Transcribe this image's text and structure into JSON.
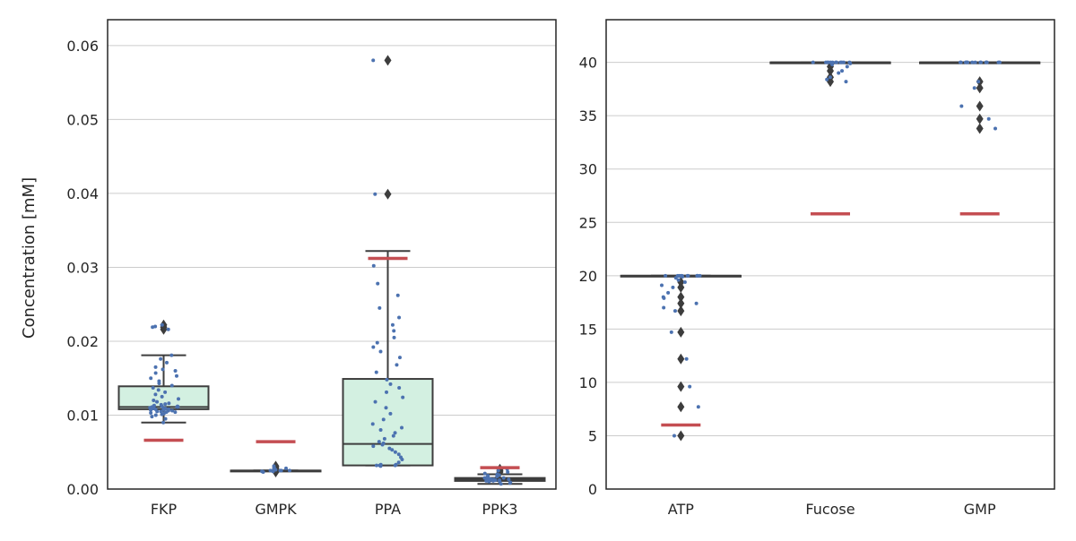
{
  "figure": {
    "ylabel": "Concentration [mM]"
  },
  "colors": {
    "box_fill": "#d3f0e1",
    "box_edge": "#3d3d3d",
    "points": "#4c72b0",
    "reference": "#c44e52",
    "grid": "#cccccc",
    "axes": "#262626"
  },
  "chart_data": [
    {
      "type": "box",
      "title": "",
      "xlabel": "",
      "ylabel": "Concentration [mM]",
      "ylim": [
        0,
        0.0635
      ],
      "yticks": [
        0.0,
        0.01,
        0.02,
        0.03,
        0.04,
        0.05,
        0.06
      ],
      "ytick_labels": [
        "0.00",
        "0.01",
        "0.02",
        "0.03",
        "0.04",
        "0.05",
        "0.06"
      ],
      "grid": "horizontal",
      "categories": [
        "FKP",
        "GMPK",
        "PPA",
        "PPK3"
      ],
      "boxes": [
        {
          "category": "FKP",
          "q1": 0.0108,
          "median": 0.0111,
          "q3": 0.0139,
          "whislo": 0.009,
          "whishi": 0.0181,
          "fliers": [
            0.0216,
            0.0219,
            0.0222
          ],
          "reference": 0.0066
        },
        {
          "category": "GMPK",
          "q1": 0.0025,
          "median": 0.0025,
          "q3": 0.0025,
          "whislo": 0.0025,
          "whishi": 0.0025,
          "fliers": [
            0.0023,
            0.0027,
            0.0029,
            0.0031
          ],
          "reference": 0.0064
        },
        {
          "category": "PPA",
          "q1": 0.0032,
          "median": 0.0061,
          "q3": 0.0149,
          "whislo": 0.0032,
          "whishi": 0.0322,
          "fliers": [
            0.0399,
            0.058
          ],
          "reference": 0.0312
        },
        {
          "category": "PPK3",
          "q1": 0.0011,
          "median": 0.0013,
          "q3": 0.0015,
          "whislo": 0.0007,
          "whishi": 0.002,
          "fliers": [
            0.0023,
            0.0025,
            0.0027
          ],
          "reference": 0.0029
        }
      ],
      "points": [
        {
          "category": "FKP",
          "values": [
            0.009,
            0.0095,
            0.0098,
            0.01,
            0.0101,
            0.0102,
            0.0103,
            0.0104,
            0.0104,
            0.0105,
            0.0105,
            0.0106,
            0.0106,
            0.0107,
            0.0107,
            0.0108,
            0.0108,
            0.0109,
            0.0109,
            0.011,
            0.011,
            0.011,
            0.0111,
            0.0111,
            0.0111,
            0.0112,
            0.0112,
            0.0113,
            0.0114,
            0.0115,
            0.0116,
            0.0118,
            0.012,
            0.0122,
            0.0125,
            0.0128,
            0.0131,
            0.0134,
            0.0137,
            0.014,
            0.0143,
            0.0146,
            0.015,
            0.0153,
            0.0157,
            0.016,
            0.0162,
            0.0165,
            0.0171,
            0.0176,
            0.0181,
            0.0216,
            0.0219,
            0.022,
            0.0222
          ]
        },
        {
          "category": "GMPK",
          "values": [
            0.0023,
            0.0024,
            0.0024,
            0.0025,
            0.0025,
            0.0025,
            0.0025,
            0.0026,
            0.0026,
            0.0027,
            0.0028,
            0.0029,
            0.0031
          ]
        },
        {
          "category": "PPA",
          "values": [
            0.0031,
            0.0032,
            0.0032,
            0.0032,
            0.0033,
            0.0033,
            0.0036,
            0.004,
            0.0043,
            0.0047,
            0.005,
            0.0053,
            0.0055,
            0.0058,
            0.006,
            0.0062,
            0.0064,
            0.0068,
            0.0072,
            0.0076,
            0.008,
            0.0083,
            0.0088,
            0.0094,
            0.0102,
            0.011,
            0.0118,
            0.0124,
            0.0131,
            0.0137,
            0.0142,
            0.0148,
            0.0158,
            0.0168,
            0.0178,
            0.0186,
            0.0192,
            0.0198,
            0.0205,
            0.0214,
            0.0222,
            0.0232,
            0.0245,
            0.0262,
            0.0278,
            0.0302,
            0.0399,
            0.058
          ]
        },
        {
          "category": "PPK3",
          "values": [
            0.0007,
            0.0008,
            0.0009,
            0.001,
            0.001,
            0.0011,
            0.0011,
            0.0012,
            0.0012,
            0.0012,
            0.0013,
            0.0013,
            0.0013,
            0.0014,
            0.0014,
            0.0015,
            0.0015,
            0.0016,
            0.0017,
            0.0018,
            0.0019,
            0.002,
            0.0021,
            0.0023,
            0.0025,
            0.0027
          ]
        }
      ]
    },
    {
      "type": "box",
      "title": "",
      "xlabel": "",
      "ylabel": "",
      "ylim": [
        0,
        44
      ],
      "yticks": [
        0,
        5,
        10,
        15,
        20,
        25,
        30,
        35,
        40
      ],
      "ytick_labels": [
        "0",
        "5",
        "10",
        "15",
        "20",
        "25",
        "30",
        "35",
        "40"
      ],
      "grid": "horizontal",
      "categories": [
        "ATP",
        "Fucose",
        "GMP"
      ],
      "boxes": [
        {
          "category": "ATP",
          "q1": 20.0,
          "median": 20.0,
          "q3": 20.0,
          "whislo": 20.0,
          "whishi": 20.0,
          "fliers": [
            5.0,
            7.7,
            9.6,
            12.2,
            14.7,
            16.7,
            17.4,
            18.0,
            18.9,
            19.4
          ],
          "reference": 6.0
        },
        {
          "category": "Fucose",
          "q1": 40.0,
          "median": 40.0,
          "q3": 40.0,
          "whislo": 40.0,
          "whishi": 40.0,
          "fliers": [
            38.2,
            38.6,
            39.2,
            39.6
          ],
          "reference": 25.8
        },
        {
          "category": "GMP",
          "q1": 40.0,
          "median": 40.0,
          "q3": 40.0,
          "whislo": 40.0,
          "whishi": 40.0,
          "fliers": [
            33.8,
            34.7,
            35.9,
            37.6,
            38.2
          ],
          "reference": 25.8
        }
      ],
      "points": [
        {
          "category": "ATP",
          "values": [
            5.0,
            7.7,
            9.6,
            12.2,
            14.7,
            16.7,
            17.0,
            17.4,
            17.9,
            18.0,
            18.4,
            18.9,
            19.1,
            19.4,
            19.6,
            19.8,
            19.9,
            20.0,
            20.0,
            20.0,
            20.0,
            20.0,
            20.0,
            20.0,
            20.0,
            20.0,
            20.0,
            20.0
          ]
        },
        {
          "category": "Fucose",
          "values": [
            38.2,
            38.4,
            38.6,
            39.0,
            39.2,
            39.6,
            39.8,
            39.9,
            40.0,
            40.0,
            40.0,
            40.0,
            40.0,
            40.0,
            40.0,
            40.0,
            40.0,
            40.0,
            40.0,
            40.0
          ]
        },
        {
          "category": "GMP",
          "values": [
            33.8,
            34.7,
            35.9,
            37.6,
            38.2,
            40.0,
            40.0,
            40.0,
            40.0,
            40.0,
            40.0,
            40.0,
            40.0,
            40.0,
            40.0,
            40.0,
            40.0,
            40.0,
            40.0,
            40.0
          ]
        }
      ]
    }
  ]
}
